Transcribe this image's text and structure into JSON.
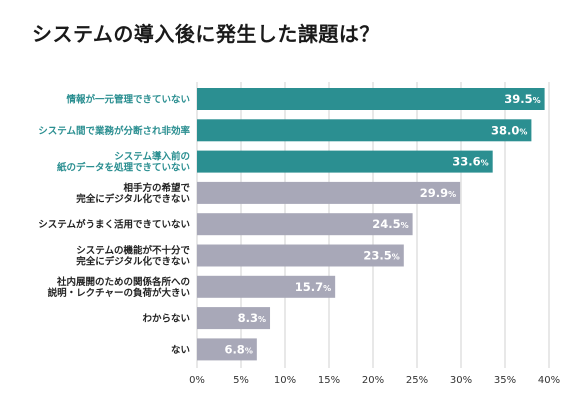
{
  "title": "システムの導入後に発生した課題は？",
  "chart_data": {
    "type": "bar",
    "orientation": "horizontal",
    "title": "システムの導入後に発生した課題は？",
    "categories": [
      [
        "情報が一元管理できていない"
      ],
      [
        "システム間で業務が分断され非効率"
      ],
      [
        "システム導入前の",
        "紙のデータを処理できていない"
      ],
      [
        "相手方の希望で",
        "完全にデジタル化できない"
      ],
      [
        "システムがうまく活用できていない"
      ],
      [
        "システムの機能が不十分で",
        "完全にデジタル化できない"
      ],
      [
        "社内展開のための関係各所への",
        "説明・レクチャーの負荷が大きい"
      ],
      [
        "わからない"
      ],
      [
        "ない"
      ]
    ],
    "values": [
      39.5,
      38.0,
      33.6,
      29.9,
      24.5,
      23.5,
      15.7,
      8.3,
      6.8
    ],
    "value_unit": "%",
    "highlighted": [
      true,
      true,
      true,
      false,
      false,
      false,
      false,
      false,
      false
    ],
    "xlim": [
      0,
      40
    ],
    "xticks": [
      "0%",
      "5%",
      "10%",
      "15%",
      "20%",
      "25%",
      "30%",
      "35%",
      "40%"
    ],
    "xtick_values": [
      0,
      5,
      10,
      15,
      20,
      25,
      30,
      35,
      40
    ],
    "grid": true,
    "colors": {
      "highlight_bar": "#2b8f91",
      "normal_bar": "#a8a8b8",
      "highlight_label": "#2b8f91",
      "normal_label": "#222222",
      "grid": "#d0d0d0"
    }
  }
}
